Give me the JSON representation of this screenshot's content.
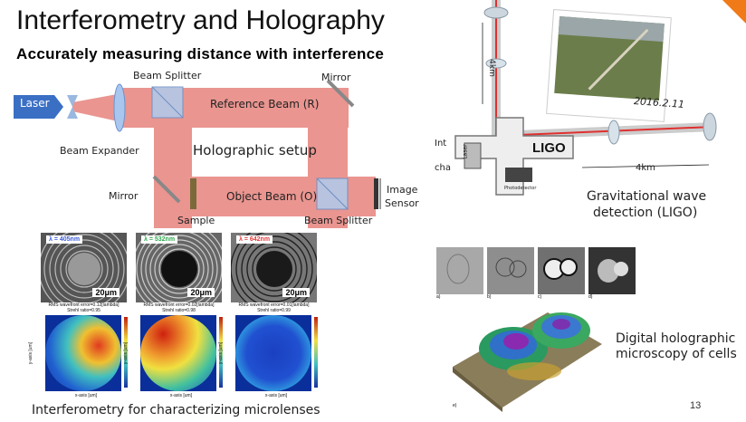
{
  "slide": {
    "title": "Interferometry and Holography",
    "subtitle": "Accurately measuring distance with interference",
    "page_number": "13",
    "accent_color": "#f07a18"
  },
  "setup": {
    "laser": "Laser",
    "beam_expander": "Beam Expander",
    "beam_splitter_top": "Beam Splitter",
    "mirror_top": "Mirror",
    "reference_beam": "Reference Beam (R)",
    "holographic_setup": "Holographic setup",
    "mirror_left": "Mirror",
    "object_beam": "Object Beam (O)",
    "image_sensor_line1": "Image",
    "image_sensor_line2": "Sensor",
    "sample": "Sample",
    "beam_splitter_bottom": "Beam Splitter",
    "beam_color": "#e88a84"
  },
  "ligo": {
    "arm_length_vertical": "4km",
    "arm_length_horizontal": "4km",
    "photo_date": "2016.2.11",
    "logo": "LIGO",
    "laser_label": "Laser",
    "photodetector": "Photodetector",
    "cut_text_1": "Int",
    "cut_text_2": "cha",
    "caption_line1": "Gravitational wave",
    "caption_line2": "detection (LIGO)"
  },
  "microlenses": {
    "panels": [
      {
        "wavelength": "λ = 405nm",
        "color": "#3a5bd9",
        "scale": "20μm",
        "rms": "RMS wavefront error=0.12[lambda]",
        "strehl": "Strehl ratio=0.95"
      },
      {
        "wavelength": "λ = 532nm",
        "color": "#2fa84f",
        "scale": "20μm",
        "rms": "RMS wavefront error=0.02[lambda]",
        "strehl": "Strehl ratio=0.98"
      },
      {
        "wavelength": "λ = 642nm",
        "color": "#e03a3a",
        "scale": "20μm",
        "rms": "RMS wavefront error=0.01[lambda]",
        "strehl": "Strehl ratio=0.99"
      }
    ],
    "x_axis": "x-axis [um]",
    "y_axis": "y-axis [um]",
    "caption": "Interferometry for characterizing microlenses"
  },
  "dhm": {
    "thumb_labels": [
      "a)",
      "b)",
      "c)",
      "d)"
    ],
    "surface_label": "e)",
    "caption_line1": "Digital holographic",
    "caption_line2": "microscopy of cells"
  }
}
